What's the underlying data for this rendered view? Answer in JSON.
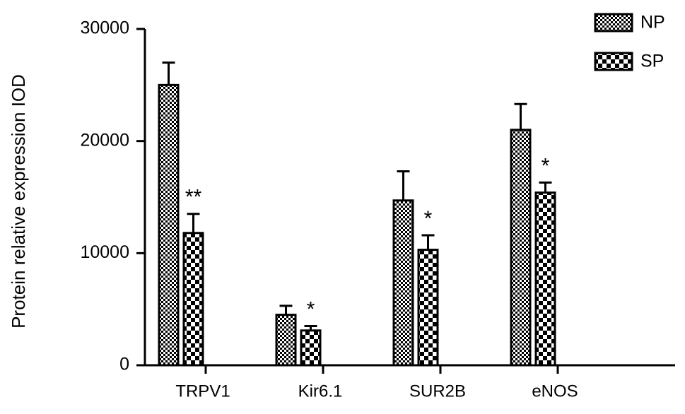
{
  "chart_data": {
    "type": "bar",
    "y_label": "Protein relative expression IOD",
    "categories": [
      "TRPV1",
      "Kir6.1",
      "SUR2B",
      "eNOS"
    ],
    "series": [
      {
        "name": "NP",
        "color": "#000000",
        "values": [
          25000,
          4500,
          14700,
          21000
        ],
        "errors": [
          2000,
          800,
          2600,
          2300
        ]
      },
      {
        "name": "SP",
        "color": "#000000",
        "values": [
          11800,
          3100,
          10300,
          15400
        ],
        "errors": [
          1700,
          400,
          1300,
          900
        ]
      }
    ],
    "annotations": [
      "**",
      "*",
      "*",
      "*"
    ],
    "ylim": [
      0,
      30000
    ],
    "yticks": [
      0,
      10000,
      20000,
      30000
    ]
  }
}
